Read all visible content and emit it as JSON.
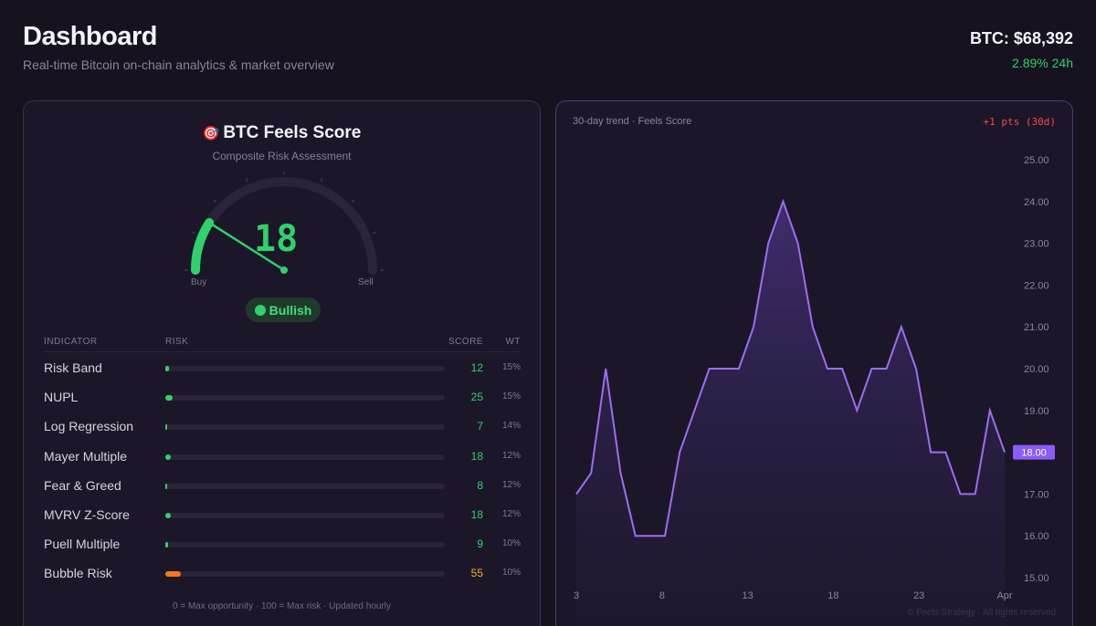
{
  "header": {
    "title": "Dashboard",
    "subtitle": "Real-time Bitcoin on-chain analytics & market overview",
    "price": "BTC: $68,392",
    "change": "2.89% 24h"
  },
  "score_card": {
    "title": "BTC Feels Score",
    "subtitle": "Composite Risk Assessment",
    "value": "18",
    "gauge_fraction": 0.18,
    "buy_label": "Buy",
    "sell_label": "Sell",
    "status": "Bullish",
    "columns": {
      "indicator": "INDICATOR",
      "risk": "RISK",
      "score": "SCORE",
      "wt": "WT"
    },
    "rows": [
      {
        "name": "Risk Band",
        "score": "12",
        "weight": "15%",
        "color": "#2fd16b"
      },
      {
        "name": "NUPL",
        "score": "25",
        "weight": "15%",
        "color": "#2fd16b"
      },
      {
        "name": "Log Regression",
        "score": "7",
        "weight": "14%",
        "color": "#2fd16b"
      },
      {
        "name": "Mayer Multiple",
        "score": "18",
        "weight": "12%",
        "color": "#2fd16b"
      },
      {
        "name": "Fear & Greed",
        "score": "8",
        "weight": "12%",
        "color": "#2fd16b"
      },
      {
        "name": "MVRV Z-Score",
        "score": "18",
        "weight": "12%",
        "color": "#2fd16b"
      },
      {
        "name": "Puell Multiple",
        "score": "9",
        "weight": "10%",
        "color": "#2fd16b"
      },
      {
        "name": "Bubble Risk",
        "score": "55",
        "weight": "10%",
        "color": "#f07a1a"
      }
    ],
    "footnote": "0 = Max opportunity · 100 = Max risk · Updated hourly"
  },
  "colors": {
    "accent": "#8b5cf6",
    "bullish": "#2fd16b",
    "bearish": "#ef4b4b",
    "warning": "#f07a1a"
  },
  "chart_data": {
    "type": "area",
    "title": "30-day trend · Feels Score",
    "change_label": "+1 pts (30d)",
    "x_tick_labels": [
      "3",
      "8",
      "13",
      "18",
      "23",
      "Apr"
    ],
    "x_tick_days": [
      3,
      8,
      13,
      18,
      23,
      28
    ],
    "y_ticks": [
      "25.00",
      "24.00",
      "23.00",
      "22.00",
      "21.00",
      "20.00",
      "19.00",
      "18.00",
      "17.00",
      "16.00",
      "15.00"
    ],
    "ylim": [
      15,
      25
    ],
    "current_value_label": "18.00",
    "series": [
      {
        "values": [
          17,
          17.5,
          20,
          17.5,
          16,
          16,
          16,
          18,
          19,
          20,
          20,
          20,
          21,
          23,
          24,
          23,
          21,
          20,
          20,
          19,
          20,
          20,
          21,
          20,
          18,
          18,
          17,
          17,
          19,
          18
        ]
      }
    ],
    "grid": false,
    "legend": "none"
  },
  "watermark": "© Feels Strategy · All rights reserved"
}
